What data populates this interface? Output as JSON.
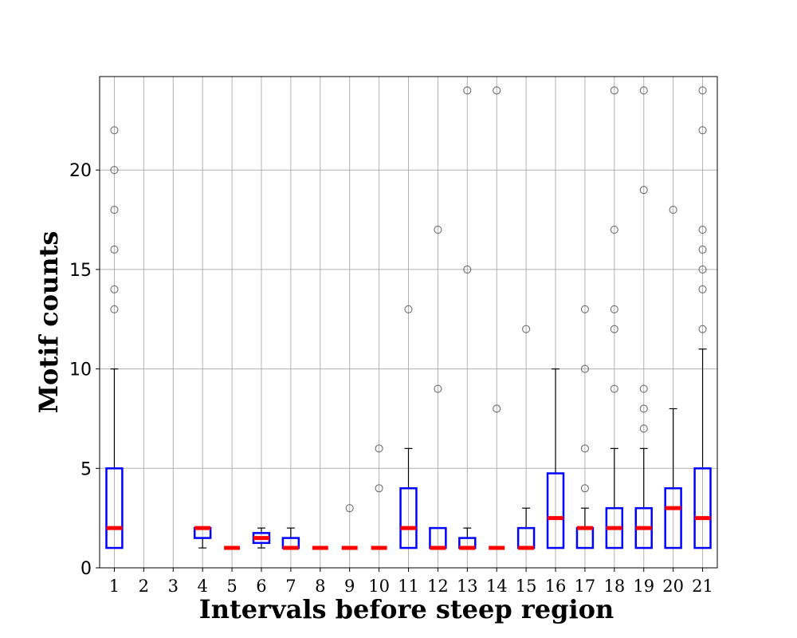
{
  "chart_data": {
    "type": "boxplot",
    "xlabel": "Intervals before steep region",
    "ylabel": "Motif counts",
    "title": "",
    "ylim": [
      0,
      24.7
    ],
    "yticks": [
      0,
      5,
      10,
      15,
      20
    ],
    "grid": true,
    "categories": [
      "1",
      "2",
      "3",
      "4",
      "5",
      "6",
      "7",
      "8",
      "9",
      "10",
      "11",
      "12",
      "13",
      "14",
      "15",
      "16",
      "17",
      "18",
      "19",
      "20",
      "21"
    ],
    "boxes": [
      {
        "category": "1",
        "q1": 1,
        "median": 2,
        "q3": 5,
        "whisker_low": 1,
        "whisker_high": 10,
        "fliers": [
          13,
          14,
          16,
          18,
          20,
          22
        ]
      },
      {
        "category": "2",
        "empty": true
      },
      {
        "category": "3",
        "empty": true
      },
      {
        "category": "4",
        "q1": 1.5,
        "median": 2,
        "q3": 2,
        "whisker_low": 1,
        "whisker_high": 2,
        "fliers": []
      },
      {
        "category": "5",
        "q1": 1,
        "median": 1,
        "q3": 1,
        "whisker_low": 1,
        "whisker_high": 1,
        "fliers": []
      },
      {
        "category": "6",
        "q1": 1.25,
        "median": 1.5,
        "q3": 1.75,
        "whisker_low": 1,
        "whisker_high": 2,
        "fliers": []
      },
      {
        "category": "7",
        "q1": 1,
        "median": 1,
        "q3": 1.5,
        "whisker_low": 1,
        "whisker_high": 2,
        "fliers": []
      },
      {
        "category": "8",
        "q1": 1,
        "median": 1,
        "q3": 1,
        "whisker_low": 1,
        "whisker_high": 1,
        "fliers": []
      },
      {
        "category": "9",
        "q1": 1,
        "median": 1,
        "q3": 1,
        "whisker_low": 1,
        "whisker_high": 1,
        "fliers": [
          3
        ]
      },
      {
        "category": "10",
        "q1": 1,
        "median": 1,
        "q3": 1,
        "whisker_low": 1,
        "whisker_high": 1,
        "fliers": [
          4,
          6
        ]
      },
      {
        "category": "11",
        "q1": 1,
        "median": 2,
        "q3": 4,
        "whisker_low": 1,
        "whisker_high": 6,
        "fliers": [
          13
        ]
      },
      {
        "category": "12",
        "q1": 1,
        "median": 1,
        "q3": 2,
        "whisker_low": 1,
        "whisker_high": 2,
        "fliers": [
          9,
          17
        ]
      },
      {
        "category": "13",
        "q1": 1,
        "median": 1,
        "q3": 1.5,
        "whisker_low": 1,
        "whisker_high": 2,
        "fliers": [
          15,
          24
        ]
      },
      {
        "category": "14",
        "q1": 1,
        "median": 1,
        "q3": 1,
        "whisker_low": 1,
        "whisker_high": 1,
        "fliers": [
          8,
          24
        ]
      },
      {
        "category": "15",
        "q1": 1,
        "median": 1,
        "q3": 2,
        "whisker_low": 1,
        "whisker_high": 3,
        "fliers": [
          12
        ]
      },
      {
        "category": "16",
        "q1": 1,
        "median": 2.5,
        "q3": 4.75,
        "whisker_low": 1,
        "whisker_high": 10,
        "fliers": []
      },
      {
        "category": "17",
        "q1": 1,
        "median": 2,
        "q3": 2,
        "whisker_low": 1,
        "whisker_high": 3,
        "fliers": [
          4,
          6,
          10,
          13
        ]
      },
      {
        "category": "18",
        "q1": 1,
        "median": 2,
        "q3": 3,
        "whisker_low": 1,
        "whisker_high": 6,
        "fliers": [
          9,
          12,
          13,
          17,
          24
        ]
      },
      {
        "category": "19",
        "q1": 1,
        "median": 2,
        "q3": 3,
        "whisker_low": 1,
        "whisker_high": 6,
        "fliers": [
          7,
          8,
          9,
          19,
          24
        ]
      },
      {
        "category": "20",
        "q1": 1,
        "median": 3,
        "q3": 4,
        "whisker_low": 1,
        "whisker_high": 8,
        "fliers": [
          18
        ]
      },
      {
        "category": "21",
        "q1": 1,
        "median": 2.5,
        "q3": 5,
        "whisker_low": 1,
        "whisker_high": 11,
        "fliers": [
          12,
          14,
          15,
          16,
          17,
          22,
          24
        ]
      }
    ],
    "colors": {
      "box": "#0000ff",
      "median": "#ff0000",
      "whisker": "#000000",
      "grid": "#b0b0b0"
    }
  }
}
